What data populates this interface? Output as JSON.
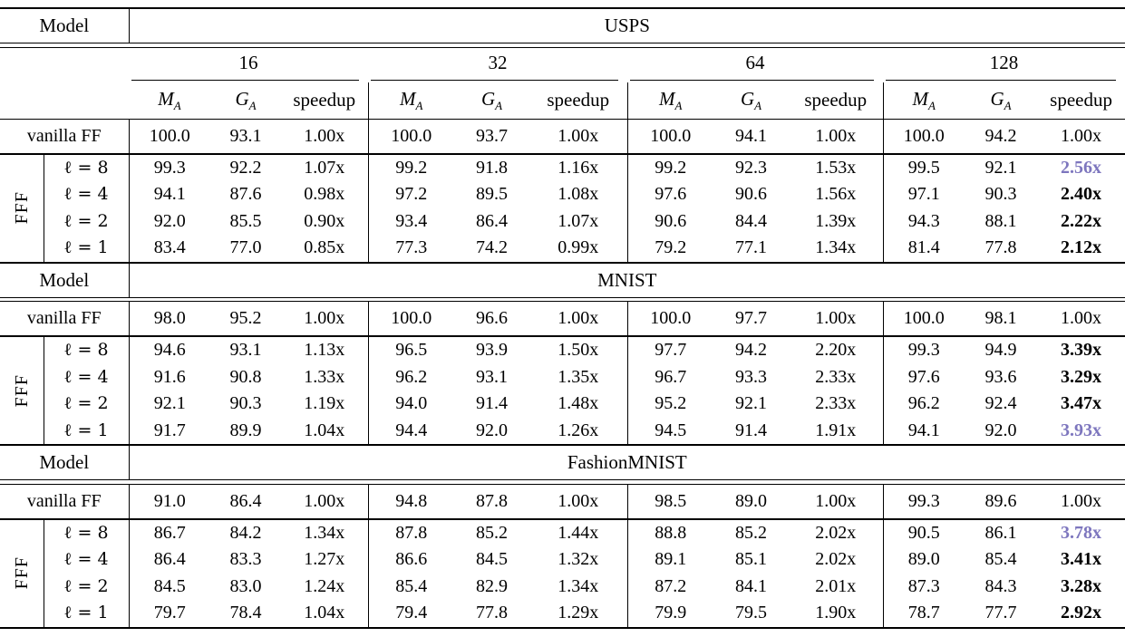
{
  "page": {
    "background_color": "#ffffff",
    "text_color": "#000000",
    "accent_purple": "#7d76be"
  },
  "table": {
    "model_header_label": "Model",
    "vanilla_label": "vanilla FF",
    "fff_label": "FFF",
    "width_labels": [
      "16",
      "32",
      "64",
      "128"
    ],
    "subcols": {
      "m_base": "M",
      "g_base": "G",
      "sub": "A",
      "speedup": "speedup"
    },
    "sections": [
      {
        "dataset": "USPS",
        "vanilla": [
          [
            "100.0",
            "93.1",
            "1.00x"
          ],
          [
            "100.0",
            "93.7",
            "1.00x"
          ],
          [
            "100.0",
            "94.1",
            "1.00x"
          ],
          [
            "100.0",
            "94.2",
            "1.00x"
          ]
        ],
        "fff_rows": [
          {
            "label": "ℓ = 8",
            "groups": [
              [
                "99.3",
                "92.2",
                "1.07x"
              ],
              [
                "99.2",
                "91.8",
                "1.16x"
              ],
              [
                "99.2",
                "92.3",
                "1.53x"
              ],
              [
                "99.5",
                "92.1",
                "2.56x"
              ]
            ],
            "last_speedup_color": "purple"
          },
          {
            "label": "ℓ = 4",
            "groups": [
              [
                "94.1",
                "87.6",
                "0.98x"
              ],
              [
                "97.2",
                "89.5",
                "1.08x"
              ],
              [
                "97.6",
                "90.6",
                "1.56x"
              ],
              [
                "97.1",
                "90.3",
                "2.40x"
              ]
            ],
            "last_speedup_color": "bold"
          },
          {
            "label": "ℓ = 2",
            "groups": [
              [
                "92.0",
                "85.5",
                "0.90x"
              ],
              [
                "93.4",
                "86.4",
                "1.07x"
              ],
              [
                "90.6",
                "84.4",
                "1.39x"
              ],
              [
                "94.3",
                "88.1",
                "2.22x"
              ]
            ],
            "last_speedup_color": "bold"
          },
          {
            "label": "ℓ = 1",
            "groups": [
              [
                "83.4",
                "77.0",
                "0.85x"
              ],
              [
                "77.3",
                "74.2",
                "0.99x"
              ],
              [
                "79.2",
                "77.1",
                "1.34x"
              ],
              [
                "81.4",
                "77.8",
                "2.12x"
              ]
            ],
            "last_speedup_color": "bold"
          }
        ]
      },
      {
        "dataset": "MNIST",
        "vanilla": [
          [
            "98.0",
            "95.2",
            "1.00x"
          ],
          [
            "100.0",
            "96.6",
            "1.00x"
          ],
          [
            "100.0",
            "97.7",
            "1.00x"
          ],
          [
            "100.0",
            "98.1",
            "1.00x"
          ]
        ],
        "fff_rows": [
          {
            "label": "ℓ = 8",
            "groups": [
              [
                "94.6",
                "93.1",
                "1.13x"
              ],
              [
                "96.5",
                "93.9",
                "1.50x"
              ],
              [
                "97.7",
                "94.2",
                "2.20x"
              ],
              [
                "99.3",
                "94.9",
                "3.39x"
              ]
            ],
            "last_speedup_color": "bold"
          },
          {
            "label": "ℓ = 4",
            "groups": [
              [
                "91.6",
                "90.8",
                "1.33x"
              ],
              [
                "96.2",
                "93.1",
                "1.35x"
              ],
              [
                "96.7",
                "93.3",
                "2.33x"
              ],
              [
                "97.6",
                "93.6",
                "3.29x"
              ]
            ],
            "last_speedup_color": "bold"
          },
          {
            "label": "ℓ = 2",
            "groups": [
              [
                "92.1",
                "90.3",
                "1.19x"
              ],
              [
                "94.0",
                "91.4",
                "1.48x"
              ],
              [
                "95.2",
                "92.1",
                "2.33x"
              ],
              [
                "96.2",
                "92.4",
                "3.47x"
              ]
            ],
            "last_speedup_color": "bold"
          },
          {
            "label": "ℓ = 1",
            "groups": [
              [
                "91.7",
                "89.9",
                "1.04x"
              ],
              [
                "94.4",
                "92.0",
                "1.26x"
              ],
              [
                "94.5",
                "91.4",
                "1.91x"
              ],
              [
                "94.1",
                "92.0",
                "3.93x"
              ]
            ],
            "last_speedup_color": "purple"
          }
        ]
      },
      {
        "dataset": "FashionMNIST",
        "vanilla": [
          [
            "91.0",
            "86.4",
            "1.00x"
          ],
          [
            "94.8",
            "87.8",
            "1.00x"
          ],
          [
            "98.5",
            "89.0",
            "1.00x"
          ],
          [
            "99.3",
            "89.6",
            "1.00x"
          ]
        ],
        "fff_rows": [
          {
            "label": "ℓ = 8",
            "groups": [
              [
                "86.7",
                "84.2",
                "1.34x"
              ],
              [
                "87.8",
                "85.2",
                "1.44x"
              ],
              [
                "88.8",
                "85.2",
                "2.02x"
              ],
              [
                "90.5",
                "86.1",
                "3.78x"
              ]
            ],
            "last_speedup_color": "purple"
          },
          {
            "label": "ℓ = 4",
            "groups": [
              [
                "86.4",
                "83.3",
                "1.27x"
              ],
              [
                "86.6",
                "84.5",
                "1.32x"
              ],
              [
                "89.1",
                "85.1",
                "2.02x"
              ],
              [
                "89.0",
                "85.4",
                "3.41x"
              ]
            ],
            "last_speedup_color": "bold"
          },
          {
            "label": "ℓ = 2",
            "groups": [
              [
                "84.5",
                "83.0",
                "1.24x"
              ],
              [
                "85.4",
                "82.9",
                "1.34x"
              ],
              [
                "87.2",
                "84.1",
                "2.01x"
              ],
              [
                "87.3",
                "84.3",
                "3.28x"
              ]
            ],
            "last_speedup_color": "bold"
          },
          {
            "label": "ℓ = 1",
            "groups": [
              [
                "79.7",
                "78.4",
                "1.04x"
              ],
              [
                "79.4",
                "77.8",
                "1.29x"
              ],
              [
                "79.9",
                "79.5",
                "1.90x"
              ],
              [
                "78.7",
                "77.7",
                "2.92x"
              ]
            ],
            "last_speedup_color": "bold"
          }
        ]
      }
    ]
  }
}
